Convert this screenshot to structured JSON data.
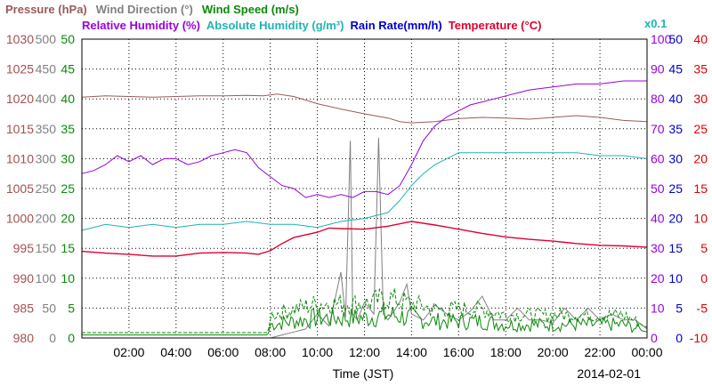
{
  "chart_data": {
    "type": "line",
    "xlabel": "Time (JST)",
    "date_label": "2014-02-01",
    "multiplier_label": "x0.1",
    "x_range": [
      "00:00",
      "24:00"
    ],
    "x_ticks": [
      "02:00",
      "04:00",
      "06:00",
      "08:00",
      "10:00",
      "12:00",
      "14:00",
      "16:00",
      "18:00",
      "20:00",
      "22:00",
      "00:00"
    ],
    "grid": true,
    "axes": [
      {
        "id": "pressure",
        "side": "left",
        "min": 980,
        "max": 1030,
        "ticks": [
          "980",
          "985",
          "990",
          "995",
          "1000",
          "1005",
          "1010",
          "1015",
          "1020",
          "1025",
          "1030"
        ],
        "color": "#a05050"
      },
      {
        "id": "wind_direction",
        "side": "left",
        "min": 0,
        "max": 500,
        "ticks": [
          "0",
          "50",
          "100",
          "150",
          "200",
          "250",
          "300",
          "350",
          "400",
          "450",
          "500"
        ],
        "color": "#808080"
      },
      {
        "id": "wind_speed",
        "side": "left",
        "min": 0,
        "max": 50,
        "ticks": [
          "0",
          "5",
          "10",
          "15",
          "20",
          "25",
          "30",
          "35",
          "40",
          "45",
          "50"
        ],
        "color": "#0a8a0a"
      },
      {
        "id": "humidity",
        "side": "right",
        "min": 0,
        "max": 100,
        "ticks": [
          "0",
          "10",
          "20",
          "30",
          "40",
          "50",
          "60",
          "70",
          "80",
          "90",
          "100"
        ],
        "color": "#9900dd"
      },
      {
        "id": "rain_rate",
        "side": "right",
        "min": 0,
        "max": 50,
        "ticks": [
          "0",
          "5",
          "10",
          "15",
          "20",
          "25",
          "30",
          "35",
          "40",
          "45",
          "50"
        ],
        "color": "#0000cc"
      },
      {
        "id": "temperature",
        "side": "right",
        "min": -10,
        "max": 40,
        "ticks": [
          "-10",
          "-5",
          "0",
          "5",
          "10",
          "15",
          "20",
          "25",
          "30",
          "35",
          "40"
        ],
        "color": "#dd0000"
      }
    ],
    "series": [
      {
        "name": "Pressure (hPa)",
        "axis": "pressure",
        "color": "#9b5a5a",
        "points": [
          [
            0,
            1020.3
          ],
          [
            1,
            1020.5
          ],
          [
            2,
            1020.4
          ],
          [
            3,
            1020.3
          ],
          [
            4,
            1020.4
          ],
          [
            5,
            1020.5
          ],
          [
            6,
            1020.5
          ],
          [
            7,
            1020.6
          ],
          [
            7.7,
            1020.5
          ],
          [
            8.3,
            1020.8
          ],
          [
            9,
            1020.4
          ],
          [
            10,
            1019.2
          ],
          [
            11,
            1018.3
          ],
          [
            12,
            1017.5
          ],
          [
            13,
            1016.8
          ],
          [
            13.5,
            1016.2
          ],
          [
            14,
            1016.0
          ],
          [
            15,
            1016.2
          ],
          [
            16,
            1016.7
          ],
          [
            17,
            1016.9
          ],
          [
            18,
            1016.8
          ],
          [
            19,
            1016.6
          ],
          [
            20,
            1016.9
          ],
          [
            21,
            1017.2
          ],
          [
            22,
            1016.9
          ],
          [
            23,
            1016.4
          ],
          [
            24,
            1016.2
          ]
        ]
      },
      {
        "name": "Wind Direction (°)",
        "axis": "wind_direction",
        "color": "#808080",
        "style": "spiky",
        "points": [
          [
            0,
            0
          ],
          [
            8,
            0
          ],
          [
            8.5,
            5
          ],
          [
            9,
            10
          ],
          [
            9.5,
            15
          ],
          [
            10,
            40
          ],
          [
            10.5,
            20
          ],
          [
            11,
            110
          ],
          [
            11.2,
            35
          ],
          [
            11.4,
            330
          ],
          [
            11.5,
            40
          ],
          [
            11.7,
            30
          ],
          [
            12,
            60
          ],
          [
            12.4,
            40
          ],
          [
            12.6,
            335
          ],
          [
            12.8,
            40
          ],
          [
            13,
            30
          ],
          [
            13.5,
            60
          ],
          [
            13.8,
            90
          ],
          [
            14,
            40
          ],
          [
            14.5,
            30
          ],
          [
            15,
            55
          ],
          [
            15.5,
            40
          ],
          [
            16,
            30
          ],
          [
            16.5,
            45
          ],
          [
            17,
            70
          ],
          [
            17.5,
            30
          ],
          [
            18,
            30
          ],
          [
            18.5,
            50
          ],
          [
            19,
            30
          ],
          [
            19.5,
            30
          ],
          [
            20,
            25
          ],
          [
            20.5,
            50
          ],
          [
            21,
            30
          ],
          [
            21.5,
            50
          ],
          [
            22,
            30
          ],
          [
            22.5,
            40
          ],
          [
            23,
            30
          ],
          [
            23.5,
            30
          ],
          [
            24,
            15
          ]
        ]
      },
      {
        "name": "Wind Speed (m/s)",
        "axis": "wind_speed",
        "color": "#0a8a0a",
        "style": "noisy",
        "points": [
          [
            0,
            0.5
          ],
          [
            4,
            0.5
          ],
          [
            7.9,
            0.5
          ],
          [
            8,
            2
          ],
          [
            9,
            2.5
          ],
          [
            10,
            3
          ],
          [
            11,
            3
          ],
          [
            12,
            3
          ],
          [
            13,
            3.5
          ],
          [
            14,
            3
          ],
          [
            15,
            2.5
          ],
          [
            16,
            2.5
          ],
          [
            17,
            2.5
          ],
          [
            18,
            2
          ],
          [
            19,
            2
          ],
          [
            20,
            2
          ],
          [
            21,
            2
          ],
          [
            22,
            2
          ],
          [
            23,
            2
          ],
          [
            24,
            1
          ]
        ]
      },
      {
        "name": "Relative Humidity (%)",
        "axis": "humidity",
        "color": "#9900dd",
        "points": [
          [
            0,
            55
          ],
          [
            0.5,
            56
          ],
          [
            1,
            58
          ],
          [
            1.5,
            61
          ],
          [
            2,
            59
          ],
          [
            2.5,
            61
          ],
          [
            3,
            58
          ],
          [
            3.5,
            60
          ],
          [
            4,
            60
          ],
          [
            4.5,
            58
          ],
          [
            5,
            59
          ],
          [
            5.5,
            61
          ],
          [
            6,
            62
          ],
          [
            6.5,
            63
          ],
          [
            7,
            62
          ],
          [
            7.5,
            57
          ],
          [
            8,
            54
          ],
          [
            8.5,
            51
          ],
          [
            9,
            50
          ],
          [
            9.5,
            47
          ],
          [
            10,
            48
          ],
          [
            10.5,
            47
          ],
          [
            11,
            48
          ],
          [
            11.5,
            47
          ],
          [
            12,
            49
          ],
          [
            12.5,
            49
          ],
          [
            13,
            48
          ],
          [
            13.5,
            51
          ],
          [
            14,
            58
          ],
          [
            14.5,
            66
          ],
          [
            15,
            71
          ],
          [
            15.5,
            74
          ],
          [
            16,
            76
          ],
          [
            16.5,
            78
          ],
          [
            17,
            79
          ],
          [
            17.5,
            80
          ],
          [
            18,
            81
          ],
          [
            18.5,
            82
          ],
          [
            19,
            83
          ],
          [
            20,
            84
          ],
          [
            21,
            85
          ],
          [
            22,
            85
          ],
          [
            23,
            86
          ],
          [
            24,
            86
          ]
        ]
      },
      {
        "name": "Absolute Humidity (g/m³)",
        "axis": "humidity",
        "color": "#1eb4b4",
        "unit_scale": "x0.1",
        "points": [
          [
            0,
            36
          ],
          [
            1,
            38
          ],
          [
            2,
            37
          ],
          [
            3,
            38
          ],
          [
            4,
            37
          ],
          [
            5,
            38
          ],
          [
            6,
            38
          ],
          [
            7,
            39
          ],
          [
            8,
            38
          ],
          [
            9,
            38
          ],
          [
            10,
            37
          ],
          [
            11,
            39
          ],
          [
            12,
            40
          ],
          [
            13,
            42
          ],
          [
            13.5,
            46
          ],
          [
            14,
            51
          ],
          [
            14.5,
            55
          ],
          [
            15,
            58
          ],
          [
            15.5,
            60
          ],
          [
            16,
            62
          ],
          [
            17,
            62
          ],
          [
            18,
            62
          ],
          [
            19,
            62
          ],
          [
            20,
            62
          ],
          [
            21,
            62
          ],
          [
            22,
            61
          ],
          [
            23,
            61
          ],
          [
            24,
            60
          ]
        ]
      },
      {
        "name": "Rain Rate(mm/h)",
        "axis": "rain_rate",
        "color": "#0000cc",
        "points": [
          [
            0,
            0
          ],
          [
            24,
            0
          ]
        ]
      },
      {
        "name": "Temperature (°C)",
        "axis": "temperature",
        "color": "#e00030",
        "points": [
          [
            0,
            4.5
          ],
          [
            1,
            4.2
          ],
          [
            2,
            4.0
          ],
          [
            3,
            3.7
          ],
          [
            4,
            3.7
          ],
          [
            5,
            4.2
          ],
          [
            6,
            4.3
          ],
          [
            7,
            4.2
          ],
          [
            7.5,
            4.0
          ],
          [
            8,
            4.6
          ],
          [
            8.5,
            5.8
          ],
          [
            9,
            6.8
          ],
          [
            10,
            7.7
          ],
          [
            10.5,
            8.4
          ],
          [
            11,
            8.3
          ],
          [
            12,
            8.2
          ],
          [
            13,
            8.7
          ],
          [
            14,
            9.5
          ],
          [
            15,
            8.9
          ],
          [
            16,
            8.2
          ],
          [
            17,
            7.5
          ],
          [
            18,
            6.9
          ],
          [
            19,
            6.5
          ],
          [
            20,
            6.2
          ],
          [
            21,
            5.8
          ],
          [
            22,
            5.5
          ],
          [
            23,
            5.4
          ],
          [
            24,
            5.2
          ]
        ]
      }
    ]
  },
  "legend": {
    "row1": [
      {
        "text": "Pressure (hPa)",
        "color": "#9b5a5a"
      },
      {
        "text": "Wind Direction (°)",
        "color": "#808080"
      },
      {
        "text": "Wind Speed (m/s)",
        "color": "#0a8a0a"
      }
    ],
    "row2": [
      {
        "text": "Relative Humidity (%)",
        "color": "#9900dd"
      },
      {
        "text": "Absolute Humidity (g/m³)",
        "color": "#1eb4b4"
      },
      {
        "text": "Rain Rate(mm/h)",
        "color": "#0000cc"
      },
      {
        "text": "Temperature (°C)",
        "color": "#e00030"
      }
    ]
  }
}
